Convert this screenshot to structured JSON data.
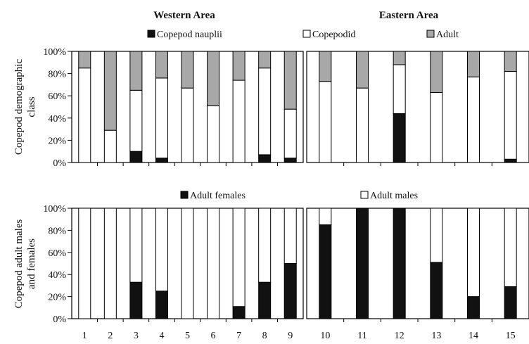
{
  "colors": {
    "nauplii": "#111111",
    "copepodid": "#ffffff",
    "adult": "#a8a8a8",
    "females": "#111111",
    "males": "#ffffff",
    "stroke": "#000000"
  },
  "x_categories": [
    "1",
    "2",
    "3",
    "4",
    "5",
    "6",
    "7",
    "8",
    "9",
    "10",
    "11",
    "12",
    "13",
    "14",
    "15"
  ],
  "area_titles": {
    "western": "Western Area",
    "eastern": "Eastern Area"
  },
  "chart_data": [
    {
      "type": "bar",
      "stacked": true,
      "percent": true,
      "ylabel": "Copepod demographic class",
      "ylim": [
        0,
        100
      ],
      "yticks": [
        "0%",
        "20%",
        "40%",
        "60%",
        "80%",
        "100%"
      ],
      "legend": "top",
      "categories": [
        "1",
        "2",
        "3",
        "4",
        "5",
        "6",
        "7",
        "8",
        "9",
        "10",
        "11",
        "12",
        "13",
        "14",
        "15"
      ],
      "series": [
        {
          "name": "Copepod nauplii",
          "color_key": "nauplii",
          "values": [
            0,
            0,
            10,
            4,
            0,
            0,
            0,
            7,
            4,
            0,
            0,
            44,
            0,
            0,
            3
          ]
        },
        {
          "name": "Copepodid",
          "color_key": "copepodid",
          "values": [
            85,
            29,
            55,
            72,
            67,
            51,
            74,
            78,
            44,
            73,
            67,
            44,
            63,
            77,
            79
          ]
        },
        {
          "name": "Adult",
          "color_key": "adult",
          "values": [
            15,
            71,
            35,
            24,
            33,
            49,
            26,
            15,
            52,
            27,
            33,
            12,
            37,
            23,
            18
          ]
        }
      ]
    },
    {
      "type": "bar",
      "stacked": true,
      "percent": true,
      "ylabel": "Copepod adult males and females",
      "ylim": [
        0,
        100
      ],
      "yticks": [
        "0%",
        "20%",
        "40%",
        "60%",
        "80%",
        "100%"
      ],
      "legend": "top",
      "categories": [
        "1",
        "2",
        "3",
        "4",
        "5",
        "6",
        "7",
        "8",
        "9",
        "10",
        "11",
        "12",
        "13",
        "14",
        "15"
      ],
      "series": [
        {
          "name": "Adult females",
          "color_key": "females",
          "values": [
            0,
            0,
            33,
            25,
            0,
            0,
            11,
            33,
            50,
            85,
            100,
            100,
            51,
            20,
            29
          ]
        },
        {
          "name": "Adult males",
          "color_key": "males",
          "values": [
            100,
            100,
            67,
            75,
            100,
            100,
            89,
            67,
            50,
            15,
            0,
            0,
            49,
            80,
            71
          ]
        }
      ]
    }
  ]
}
